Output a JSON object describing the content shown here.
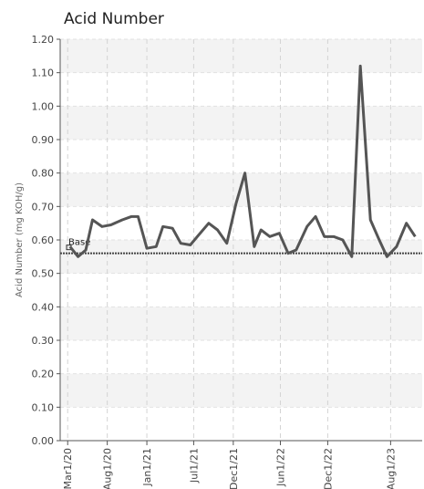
{
  "chart_data": {
    "type": "line",
    "title": "Acid Number",
    "y_label": "Acid Number (mg KOH/g)",
    "x": [
      "2020-03-10",
      "2020-04-10",
      "2020-05-10",
      "2020-06-05",
      "2020-07-12",
      "2020-08-15",
      "2020-09-28",
      "2020-11-03",
      "2020-11-28",
      "2021-01-01",
      "2021-02-06",
      "2021-03-04",
      "2021-04-10",
      "2021-05-12",
      "2021-06-18",
      "2021-07-15",
      "2021-08-28",
      "2021-10-01",
      "2021-11-06",
      "2021-12-12",
      "2022-01-15",
      "2022-02-20",
      "2022-03-18",
      "2022-04-21",
      "2022-05-28",
      "2022-07-01",
      "2022-08-01",
      "2022-09-12",
      "2022-10-15",
      "2022-11-18",
      "2022-12-24",
      "2023-01-28",
      "2023-03-04",
      "2023-04-06",
      "2023-05-15",
      "2023-06-18",
      "2023-07-18",
      "2023-08-24",
      "2023-10-01",
      "2023-11-04"
    ],
    "series": [
      {
        "name": "Acid Number",
        "color": "#555555",
        "values": [
          0.58,
          0.55,
          0.57,
          0.66,
          0.64,
          0.645,
          0.66,
          0.67,
          0.67,
          0.575,
          0.58,
          0.64,
          0.635,
          0.59,
          0.585,
          0.61,
          0.65,
          0.63,
          0.59,
          0.71,
          0.8,
          0.58,
          0.63,
          0.61,
          0.62,
          0.56,
          0.57,
          0.64,
          0.67,
          0.61,
          0.61,
          0.6,
          0.55,
          1.12,
          0.66,
          0.6,
          0.55,
          0.58,
          0.65,
          0.61
        ]
      }
    ],
    "baseline": {
      "label": "Base",
      "value": 0.56,
      "color": "#444444"
    },
    "xlim": [
      "2020-02-01",
      "2023-12-01"
    ],
    "xticks": [
      {
        "value": "2020-03-01",
        "label": "Mar1/20"
      },
      {
        "value": "2020-08-01",
        "label": "Aug1/20"
      },
      {
        "value": "2021-01-01",
        "label": "Jan1/21"
      },
      {
        "value": "2021-07-01",
        "label": "Jul1/21"
      },
      {
        "value": "2021-12-01",
        "label": "Dec1/21"
      },
      {
        "value": "2022-06-01",
        "label": "Jun1/22"
      },
      {
        "value": "2022-12-01",
        "label": "Dec1/22"
      },
      {
        "value": "2023-08-01",
        "label": "Aug1/23"
      }
    ],
    "ylim": [
      0,
      1.2
    ],
    "yticks": [
      {
        "value": 0,
        "label": "0.00"
      },
      {
        "value": 0.1,
        "label": "0.10"
      },
      {
        "value": 0.2,
        "label": "0.20"
      },
      {
        "value": 0.3,
        "label": "0.30"
      },
      {
        "value": 0.4,
        "label": "0.40"
      },
      {
        "value": 0.5,
        "label": "0.50"
      },
      {
        "value": 0.6,
        "label": "0.60"
      },
      {
        "value": 0.7,
        "label": "0.70"
      },
      {
        "value": 0.8,
        "label": "0.80"
      },
      {
        "value": 0.9,
        "label": "0.90"
      },
      {
        "value": 1.0,
        "label": "1.00"
      },
      {
        "value": 1.1,
        "label": "1.10"
      },
      {
        "value": 1.2,
        "label": "1.20"
      }
    ],
    "grid": true
  }
}
